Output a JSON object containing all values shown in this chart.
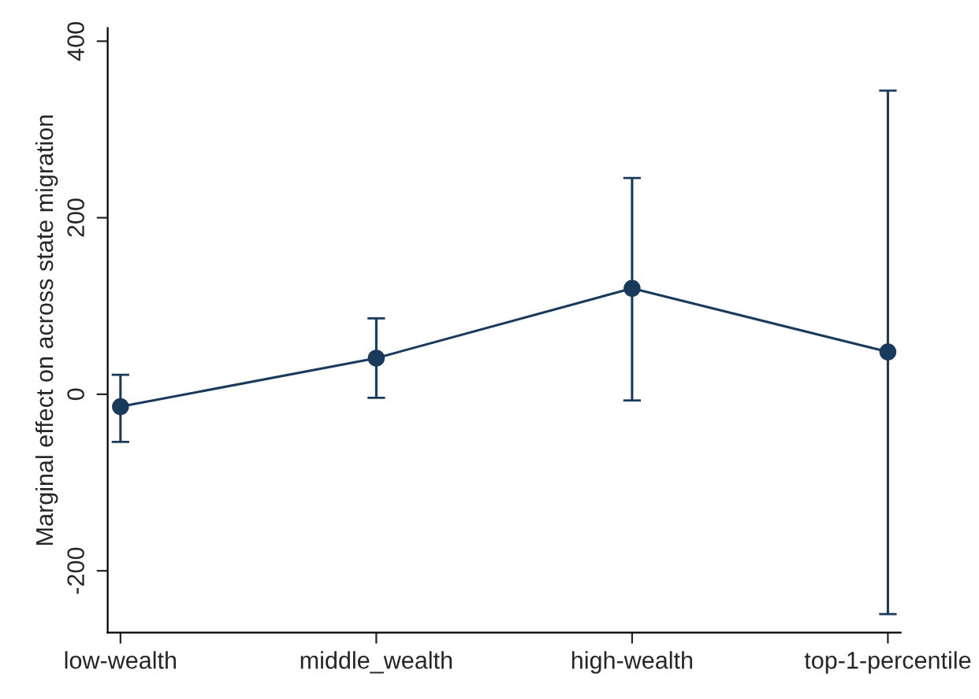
{
  "chart_data": {
    "type": "line",
    "ylabel": "Marginal effect on across state migration",
    "categories": [
      "low-wealth",
      "middle_wealth",
      "high-wealth",
      "top-1-percentile"
    ],
    "series": [
      {
        "color": "#1a3a5c",
        "values": [
          -14,
          41,
          120,
          48
        ],
        "errors": [
          [
            -54,
            22
          ],
          [
            -4,
            86
          ],
          [
            -7,
            245
          ],
          [
            -249,
            344
          ]
        ]
      }
    ],
    "ylim": [
      -270,
      415
    ],
    "yticks": [
      -200,
      0,
      200,
      400
    ],
    "grid": false,
    "marker": "circle",
    "line_style": "solid"
  }
}
